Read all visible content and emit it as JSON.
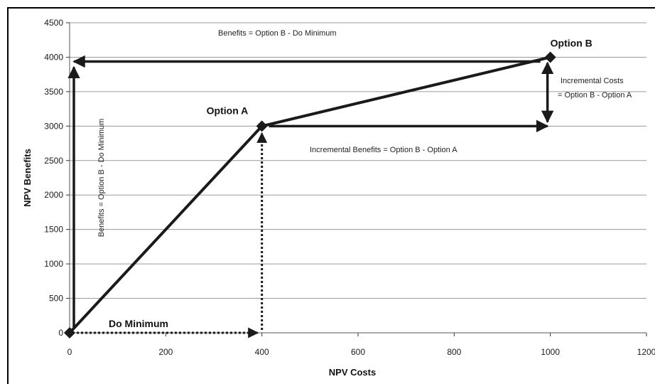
{
  "chart_data": {
    "type": "line",
    "title": "",
    "xlabel": "NPV Costs",
    "ylabel": "NPV Benefits",
    "xlim": [
      0,
      1200
    ],
    "ylim": [
      0,
      4500
    ],
    "x_ticks": [
      0,
      200,
      400,
      600,
      800,
      1000,
      1200
    ],
    "y_ticks": [
      0,
      500,
      1000,
      1500,
      2000,
      2500,
      3000,
      3500,
      4000,
      4500
    ],
    "x_tick_labels": [
      "0",
      "200",
      "400",
      "600",
      "800",
      "1000",
      "1200"
    ],
    "y_tick_labels": [
      "0",
      "500",
      "1000",
      "1500",
      "2000",
      "2500",
      "3000",
      "3500",
      "4000",
      "4500"
    ],
    "grid": "horizontal",
    "series": [
      {
        "x": [
          0,
          400,
          1000
        ],
        "y": [
          0,
          3000,
          4000
        ]
      }
    ],
    "points": [
      {
        "label": "Do Minimum",
        "x": 0,
        "y": 0
      },
      {
        "label": "Option A",
        "x": 400,
        "y": 3000
      },
      {
        "label": "Option B",
        "x": 1000,
        "y": 4000
      }
    ],
    "annotations": [
      {
        "text": "Benefits = Option B - Do Minimum",
        "orientation": "horizontal"
      },
      {
        "text": "Benefits = Option B - Do Minimum",
        "orientation": "vertical"
      },
      {
        "text": "Incremental Costs",
        "orientation": "horizontal"
      },
      {
        "text": "= Option B - Option A",
        "orientation": "horizontal"
      },
      {
        "text": "Incremental Benefits = Option B - Option A",
        "orientation": "horizontal"
      }
    ],
    "colors": {
      "line": "#1a1a1a",
      "grid": "#9a9a9a"
    }
  }
}
